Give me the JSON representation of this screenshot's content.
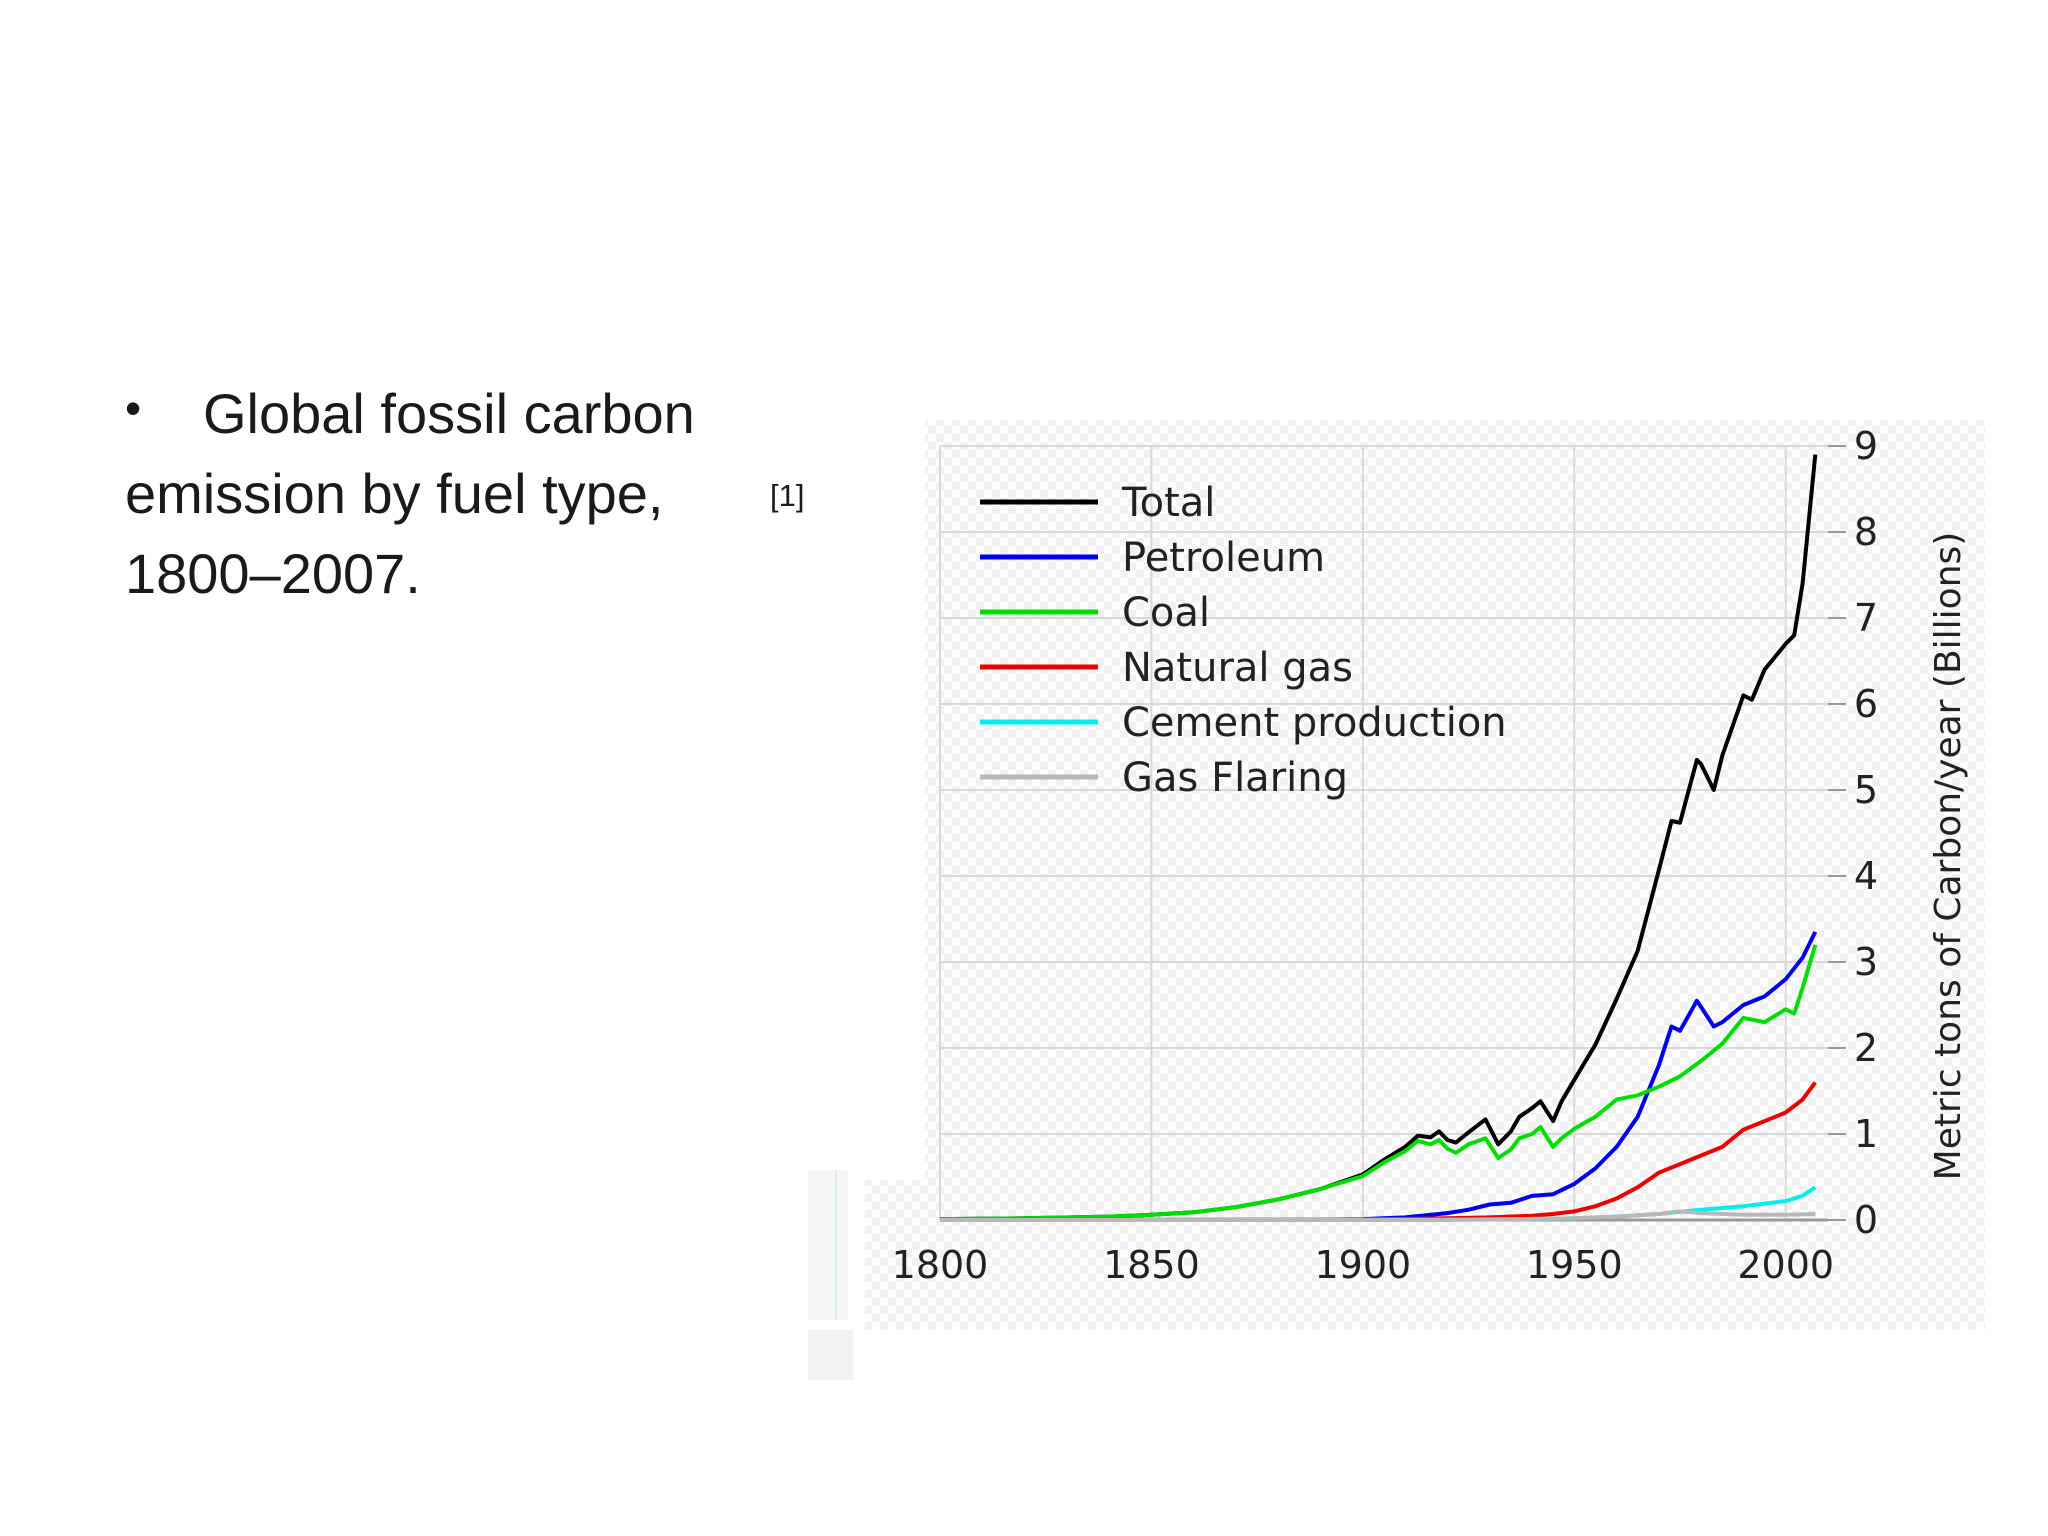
{
  "slide": {
    "bullet_symbol": "•",
    "caption_line1": "Global fossil carbon",
    "caption_line2": "emission by fuel type,",
    "caption_line3": "1800–2007.",
    "citation": "[1]"
  },
  "chart_data": {
    "type": "line",
    "title": "",
    "xlabel": "",
    "ylabel": "Metric tons of Carbon/year (Billions)",
    "xlim": [
      1800,
      2007
    ],
    "ylim": [
      0,
      9
    ],
    "x_ticks": [
      "1800",
      "1850",
      "1900",
      "1950",
      "2000"
    ],
    "y_ticks": [
      "0",
      "1",
      "2",
      "3",
      "4",
      "5",
      "6",
      "7",
      "8",
      "9"
    ],
    "y_axis_side": "right",
    "grid": true,
    "legend_position": "top-left",
    "series": [
      {
        "name": "Total",
        "color": "#000000",
        "x": [
          1800,
          1820,
          1840,
          1850,
          1860,
          1870,
          1880,
          1890,
          1900,
          1905,
          1910,
          1913,
          1916,
          1918,
          1920,
          1922,
          1925,
          1929,
          1932,
          1935,
          1937,
          1940,
          1942,
          1945,
          1947,
          1950,
          1955,
          1960,
          1965,
          1970,
          1973,
          1975,
          1979,
          1980,
          1983,
          1985,
          1990,
          1992,
          1995,
          2000,
          2002,
          2004,
          2007
        ],
        "values": [
          0.01,
          0.02,
          0.04,
          0.06,
          0.09,
          0.15,
          0.24,
          0.36,
          0.53,
          0.7,
          0.85,
          0.98,
          0.96,
          1.03,
          0.93,
          0.9,
          1.02,
          1.17,
          0.88,
          1.03,
          1.2,
          1.3,
          1.38,
          1.15,
          1.38,
          1.63,
          2.04,
          2.57,
          3.13,
          4.07,
          4.64,
          4.62,
          5.35,
          5.3,
          5.0,
          5.4,
          6.1,
          6.05,
          6.4,
          6.7,
          6.8,
          7.4,
          8.9
        ]
      },
      {
        "name": "Petroleum",
        "color": "#0000ee",
        "x": [
          1800,
          1870,
          1890,
          1900,
          1910,
          1920,
          1925,
          1930,
          1935,
          1940,
          1945,
          1950,
          1955,
          1960,
          1965,
          1970,
          1973,
          1975,
          1979,
          1981,
          1983,
          1985,
          1990,
          1995,
          2000,
          2004,
          2007
        ],
        "values": [
          0,
          0,
          0.005,
          0.01,
          0.03,
          0.08,
          0.12,
          0.18,
          0.2,
          0.28,
          0.3,
          0.42,
          0.6,
          0.85,
          1.2,
          1.8,
          2.25,
          2.2,
          2.55,
          2.4,
          2.25,
          2.3,
          2.5,
          2.6,
          2.8,
          3.05,
          3.35
        ]
      },
      {
        "name": "Coal",
        "color": "#00dd00",
        "x": [
          1800,
          1820,
          1840,
          1850,
          1860,
          1870,
          1880,
          1890,
          1900,
          1905,
          1910,
          1913,
          1916,
          1918,
          1920,
          1922,
          1925,
          1929,
          1932,
          1935,
          1937,
          1940,
          1942,
          1945,
          1947,
          1950,
          1955,
          1960,
          1965,
          1970,
          1975,
          1980,
          1985,
          1990,
          1995,
          2000,
          2002,
          2004,
          2007
        ],
        "values": [
          0.01,
          0.02,
          0.04,
          0.06,
          0.09,
          0.15,
          0.24,
          0.36,
          0.51,
          0.67,
          0.8,
          0.92,
          0.88,
          0.93,
          0.83,
          0.78,
          0.88,
          0.95,
          0.72,
          0.82,
          0.95,
          1.0,
          1.08,
          0.85,
          0.95,
          1.06,
          1.2,
          1.4,
          1.45,
          1.55,
          1.67,
          1.85,
          2.05,
          2.35,
          2.3,
          2.45,
          2.4,
          2.7,
          3.2
        ]
      },
      {
        "name": "Natural gas",
        "color": "#ee0000",
        "x": [
          1800,
          1900,
          1920,
          1930,
          1940,
          1945,
          1950,
          1955,
          1960,
          1965,
          1970,
          1975,
          1980,
          1985,
          1990,
          1995,
          2000,
          2004,
          2007
        ],
        "values": [
          0,
          0.005,
          0.02,
          0.03,
          0.05,
          0.07,
          0.1,
          0.16,
          0.25,
          0.38,
          0.55,
          0.65,
          0.75,
          0.85,
          1.05,
          1.15,
          1.25,
          1.4,
          1.6
        ]
      },
      {
        "name": "Cement production",
        "color": "#00eeee",
        "x": [
          1800,
          1920,
          1940,
          1950,
          1960,
          1970,
          1980,
          1990,
          2000,
          2004,
          2007
        ],
        "values": [
          0,
          0.005,
          0.01,
          0.02,
          0.04,
          0.07,
          0.12,
          0.16,
          0.22,
          0.28,
          0.38
        ]
      },
      {
        "name": "Gas Flaring",
        "color": "#b8b8b8",
        "x": [
          1800,
          1920,
          1950,
          1960,
          1970,
          1975,
          1980,
          1990,
          2000,
          2007
        ],
        "values": [
          0,
          0,
          0.02,
          0.04,
          0.07,
          0.1,
          0.08,
          0.06,
          0.06,
          0.07
        ]
      }
    ]
  }
}
